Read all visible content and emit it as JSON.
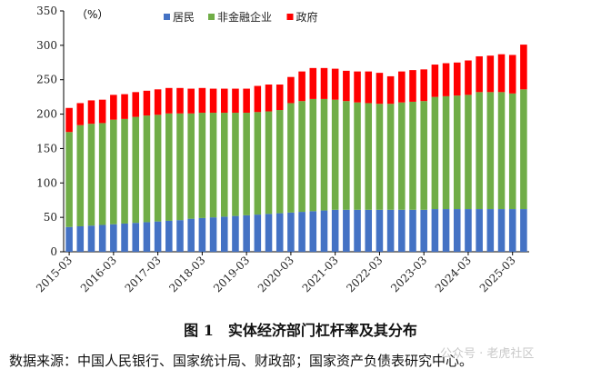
{
  "chart_data": {
    "type": "bar",
    "stacked": true,
    "unit_label": "（%）",
    "ylim": [
      0,
      350
    ],
    "yticks": [
      0,
      50,
      100,
      150,
      200,
      250,
      300,
      350
    ],
    "x_tick_labels": [
      "2015-03",
      "2016-03",
      "2017-03",
      "2018-03",
      "2019-03",
      "2020-03",
      "2021-03",
      "2022-03",
      "2023-03",
      "2024-03",
      "2025-03"
    ],
    "x_tick_every": 4,
    "legend_position": "top",
    "grid": false,
    "categories": [
      "2015-03",
      "2015-06",
      "2015-09",
      "2015-12",
      "2016-03",
      "2016-06",
      "2016-09",
      "2016-12",
      "2017-03",
      "2017-06",
      "2017-09",
      "2017-12",
      "2018-03",
      "2018-06",
      "2018-09",
      "2018-12",
      "2019-03",
      "2019-06",
      "2019-09",
      "2019-12",
      "2020-03",
      "2020-06",
      "2020-09",
      "2020-12",
      "2021-03",
      "2021-06",
      "2021-09",
      "2021-12",
      "2022-03",
      "2022-06",
      "2022-09",
      "2022-12",
      "2023-03",
      "2023-06",
      "2023-09",
      "2023-12",
      "2024-03",
      "2024-06",
      "2024-09",
      "2024-12",
      "2025-03",
      "2025-06"
    ],
    "series": [
      {
        "name": "居民",
        "color": "#4472c4",
        "values": [
          36,
          37,
          38,
          39,
          40,
          41,
          42,
          43,
          44,
          45,
          46,
          48,
          49,
          50,
          51,
          52,
          53,
          54,
          55,
          56,
          57,
          58,
          59,
          60,
          61,
          61,
          61,
          61,
          61,
          61,
          61,
          61,
          61,
          62,
          62,
          62,
          62,
          62,
          62,
          62,
          62,
          62
        ]
      },
      {
        "name": "非金融企业",
        "color": "#70ad47",
        "values": [
          138,
          147,
          148,
          148,
          152,
          152,
          154,
          155,
          155,
          156,
          155,
          153,
          153,
          152,
          151,
          150,
          149,
          149,
          149,
          150,
          159,
          161,
          163,
          162,
          160,
          158,
          156,
          155,
          154,
          154,
          156,
          157,
          158,
          163,
          164,
          165,
          166,
          170,
          170,
          170,
          168,
          174
        ]
      },
      {
        "name": "政府",
        "color": "#ff0000",
        "values": [
          35,
          32,
          34,
          34,
          36,
          36,
          36,
          36,
          37,
          37,
          37,
          36,
          36,
          35,
          35,
          35,
          35,
          38,
          39,
          37,
          38,
          43,
          45,
          45,
          45,
          44,
          45,
          46,
          45,
          40,
          45,
          46,
          46,
          47,
          48,
          48,
          50,
          52,
          53,
          55,
          56,
          65
        ]
      }
    ]
  },
  "caption": "图 1　实体经济部门杠杆率及其分布",
  "source": "数据来源：中国人民银行、国家统计局、财政部；国家资产负债表研究中心。",
  "watermark": "公众号 · 老虎社区"
}
